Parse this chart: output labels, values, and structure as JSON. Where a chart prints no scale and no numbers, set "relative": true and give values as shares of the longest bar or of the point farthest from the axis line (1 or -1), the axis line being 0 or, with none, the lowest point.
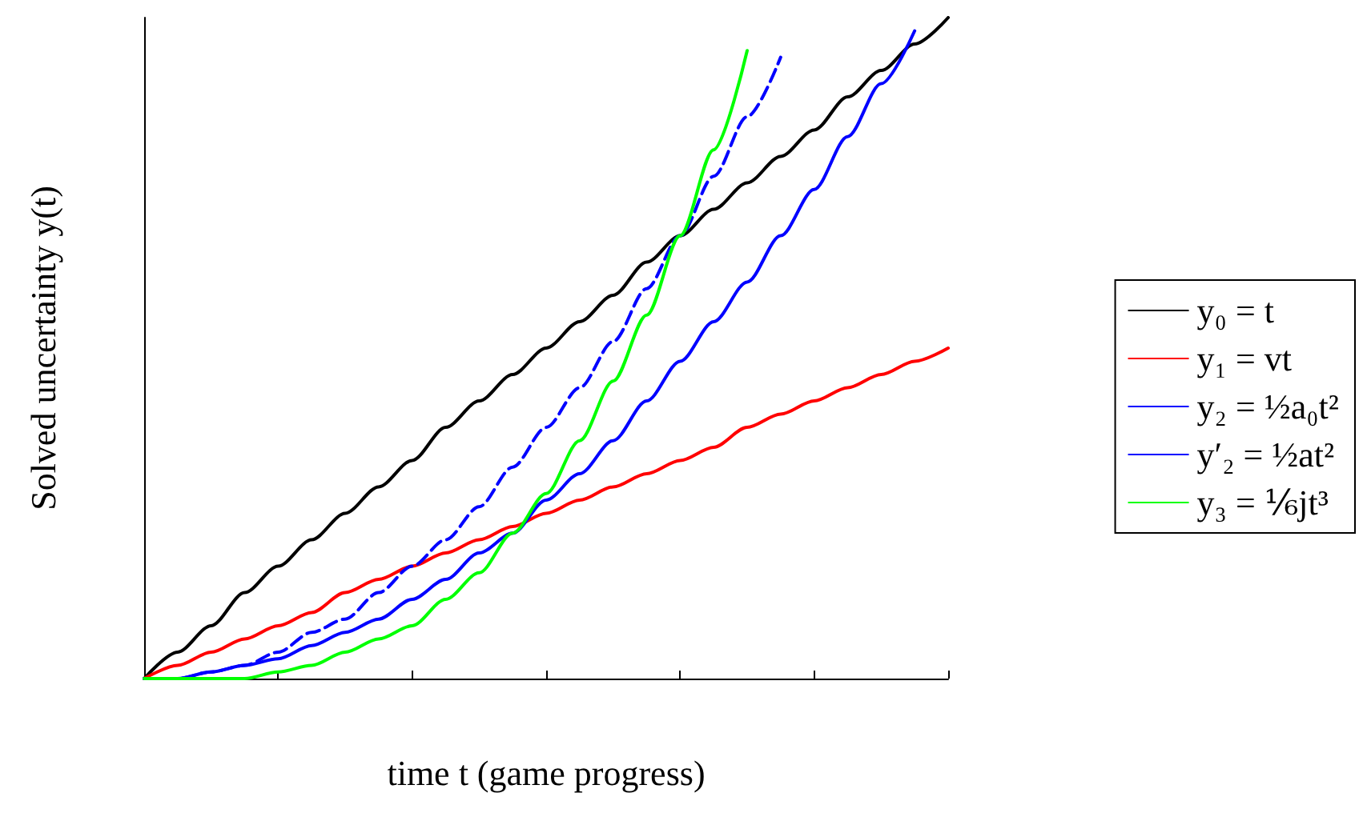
{
  "chart_data": {
    "type": "line",
    "relative": true,
    "xlabel": "time t (game progress)",
    "ylabel": "Solved uncertainty y(t)",
    "legend": "right",
    "marker": "none",
    "grid": false,
    "categories": [
      null,
      null,
      null,
      null,
      null,
      null,
      null,
      null,
      null,
      null,
      null,
      null,
      null,
      null,
      null,
      null,
      null,
      null,
      null,
      null,
      null,
      null,
      null,
      null,
      null
    ],
    "series": [
      {
        "name": "y₀ = t",
        "color": "#000000",
        "values": [
          0,
          0.04,
          0.08,
          0.13,
          0.17,
          0.21,
          0.25,
          0.29,
          0.33,
          0.38,
          0.42,
          0.46,
          0.5,
          0.54,
          0.58,
          0.63,
          0.67,
          0.71,
          0.75,
          0.79,
          0.83,
          0.88,
          0.92,
          0.96,
          1
        ]
      },
      {
        "name": "y₁ = vt",
        "color": "#ff0000",
        "values": [
          0,
          0.02,
          0.04,
          0.06,
          0.08,
          0.1,
          0.13,
          0.15,
          0.17,
          0.19,
          0.21,
          0.23,
          0.25,
          0.27,
          0.29,
          0.31,
          0.33,
          0.35,
          0.38,
          0.4,
          0.42,
          0.44,
          0.46,
          0.48,
          0.5
        ]
      },
      {
        "name": "y₂ = ½a₀t²",
        "color": "#0000ff",
        "values": [
          0,
          0,
          0.01,
          0.02,
          0.03,
          0.05,
          0.07,
          0.09,
          0.12,
          0.15,
          0.19,
          0.22,
          0.27,
          0.31,
          0.36,
          0.42,
          0.48,
          0.54,
          0.6,
          0.67,
          0.74,
          0.82,
          0.9,
          0.98,
          null
        ]
      },
      {
        "name": "y′₂ = ½at²",
        "color": "#0000ff",
        "line_style": "dashed",
        "values": [
          0,
          0,
          0.01,
          0.02,
          0.04,
          0.07,
          0.09,
          0.13,
          0.17,
          0.21,
          0.26,
          0.32,
          0.38,
          0.44,
          0.51,
          0.59,
          0.67,
          0.76,
          0.85,
          0.94,
          null,
          null,
          null,
          null,
          null
        ]
      },
      {
        "name": "y₃ = ⅙jt³",
        "color": "#00ff00",
        "values": [
          0,
          0,
          0,
          0,
          0.01,
          0.02,
          0.04,
          0.06,
          0.08,
          0.12,
          0.16,
          0.22,
          0.28,
          0.36,
          0.45,
          0.55,
          0.67,
          0.8,
          0.95,
          null,
          null,
          null,
          null,
          null,
          null
        ]
      }
    ]
  }
}
